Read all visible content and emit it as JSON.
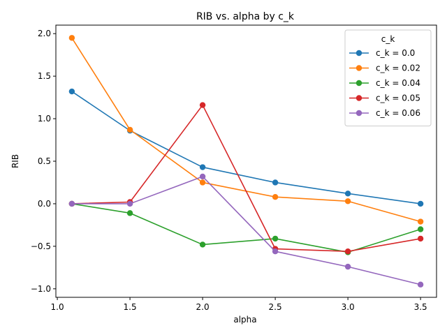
{
  "chart_data": {
    "type": "line",
    "title": "RIB vs. alpha by c_k",
    "xlabel": "alpha",
    "ylabel": "RIB",
    "x": [
      1.1,
      1.5,
      2.0,
      2.5,
      3.0,
      3.5
    ],
    "xlim": [
      0.99,
      3.61
    ],
    "ylim": [
      -1.1,
      2.1
    ],
    "xticks": [
      1.0,
      1.5,
      2.0,
      2.5,
      3.0,
      3.5
    ],
    "xtick_labels": [
      "1.0",
      "1.5",
      "2.0",
      "2.5",
      "3.0",
      "3.5"
    ],
    "yticks": [
      -1.0,
      -0.5,
      0.0,
      0.5,
      1.0,
      1.5,
      2.0
    ],
    "ytick_labels": [
      "−1.0",
      "−0.5",
      "0.0",
      "0.5",
      "1.0",
      "1.5",
      "2.0"
    ],
    "grid": false,
    "legend": {
      "title": "c_k",
      "placement": "top-right"
    },
    "series": [
      {
        "name": "c_k = 0.0",
        "color": "#1f77b4",
        "values": [
          1.32,
          0.86,
          0.43,
          0.25,
          0.12,
          0.0
        ]
      },
      {
        "name": "c_k = 0.02",
        "color": "#ff7f0e",
        "values": [
          1.95,
          0.87,
          0.25,
          0.08,
          0.03,
          -0.21
        ]
      },
      {
        "name": "c_k = 0.04",
        "color": "#2ca02c",
        "values": [
          0.0,
          -0.11,
          -0.48,
          -0.41,
          -0.57,
          -0.3
        ]
      },
      {
        "name": "c_k = 0.05",
        "color": "#d62728",
        "values": [
          0.0,
          0.02,
          1.16,
          -0.53,
          -0.56,
          -0.41
        ]
      },
      {
        "name": "c_k = 0.06",
        "color": "#9467bd",
        "values": [
          0.0,
          0.0,
          0.32,
          -0.56,
          -0.74,
          -0.95
        ]
      }
    ]
  }
}
